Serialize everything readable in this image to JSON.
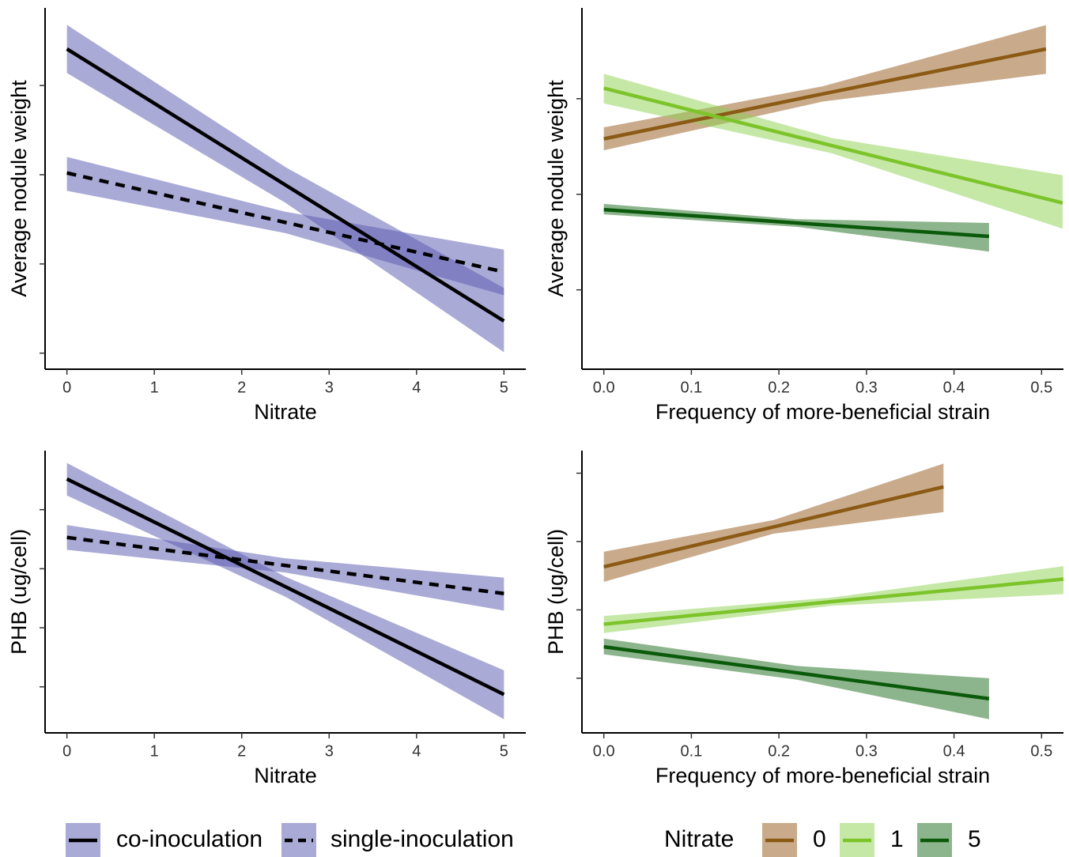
{
  "chart_data": [
    {
      "type": "line",
      "y_label": "Average nodule weight",
      "x_label": "Nitrate",
      "xlim": [
        -0.25,
        5.25
      ],
      "xticks": [
        0,
        1,
        2,
        3,
        4,
        5
      ],
      "ylim": [
        0.82,
        4.87
      ],
      "yticks": [
        1,
        2,
        3,
        4
      ],
      "series": [
        {
          "color": "#000000",
          "band_color": "#5555b0",
          "dash": false,
          "x": [
            0,
            2.5,
            5
          ],
          "values": [
            4.41,
            2.885,
            1.36
          ],
          "lower": [
            4.14,
            2.685,
            1.01
          ],
          "upper": [
            4.68,
            3.085,
            1.73
          ]
        },
        {
          "color": "#000000",
          "band_color": "#5555b0",
          "dash": true,
          "x": [
            0,
            2.5,
            5
          ],
          "values": [
            3.02,
            2.465,
            1.91
          ],
          "lower": [
            2.82,
            2.345,
            1.65
          ],
          "upper": [
            3.2,
            2.585,
            2.16
          ]
        }
      ]
    },
    {
      "type": "line",
      "y_label": "Average nodule weight",
      "x_label": "Frequency of more-beneficial strain",
      "xlim": [
        -0.025,
        0.525
      ],
      "xticks": [
        {
          "value": 0,
          "label": "0.0"
        },
        0.1,
        0.2,
        0.3,
        0.4,
        0.5
      ],
      "ylim": [
        0.17,
        3.95
      ],
      "yticks": [
        1,
        2,
        3
      ],
      "series": [
        {
          "color": "#8b5a14",
          "band_color": "#93581a",
          "dash": false,
          "x": [
            0,
            0.25,
            0.505
          ],
          "values": [
            2.58,
            3.05,
            3.52
          ],
          "lower": [
            2.46,
            2.97,
            3.26
          ],
          "upper": [
            2.7,
            3.13,
            3.77
          ]
        },
        {
          "color": "#7cc42a",
          "band_color": "#8ed14f",
          "dash": false,
          "x": [
            0,
            0.26,
            0.524
          ],
          "values": [
            3.11,
            2.51,
            1.91
          ],
          "lower": [
            2.95,
            2.43,
            1.64
          ],
          "upper": [
            3.26,
            2.59,
            2.2
          ]
        },
        {
          "color": "#0b5a0b",
          "band_color": "#1b6b1b",
          "dash": false,
          "x": [
            0,
            0.22,
            0.44
          ],
          "values": [
            1.84,
            1.7,
            1.56
          ],
          "lower": [
            1.79,
            1.66,
            1.4
          ],
          "upper": [
            1.9,
            1.74,
            1.7
          ]
        }
      ]
    },
    {
      "type": "line",
      "y_label": "PHB (ug/cell)",
      "x_label": "Nitrate",
      "xlim": [
        -0.25,
        5.25
      ],
      "xticks": [
        0,
        1,
        2,
        3,
        4,
        5
      ],
      "ylim": [
        0.22,
        5.0
      ],
      "yticks": [
        1,
        2,
        3,
        4
      ],
      "series": [
        {
          "name": "co-inoculation",
          "color": "#000000",
          "band_color": "#5555b0",
          "dash": false,
          "x": [
            0,
            2.5,
            5
          ],
          "values": [
            4.52,
            2.695,
            0.87
          ],
          "lower": [
            4.24,
            2.525,
            0.45
          ],
          "upper": [
            4.79,
            2.865,
            1.28
          ]
        },
        {
          "name": "single-inoculation",
          "color": "#000000",
          "band_color": "#5555b0",
          "dash": true,
          "x": [
            0,
            2.5,
            5
          ],
          "values": [
            3.53,
            3.055,
            2.58
          ],
          "lower": [
            3.32,
            2.935,
            2.29
          ],
          "upper": [
            3.74,
            3.175,
            2.85
          ]
        }
      ]
    },
    {
      "type": "line",
      "y_label": "PHB (ug/cell)",
      "x_label": "Frequency of more-beneficial strain",
      "xlim": [
        -0.025,
        0.525
      ],
      "xticks": [
        {
          "value": 0,
          "label": "0.0"
        },
        0.1,
        0.2,
        0.3,
        0.4,
        0.5
      ],
      "ylim": [
        0.2,
        4.33
      ],
      "yticks": [
        1,
        2,
        3,
        4
      ],
      "legend_title": "Nitrate",
      "series": [
        {
          "name": "0",
          "color": "#8b5a14",
          "band_color": "#93581a",
          "dash": false,
          "x": [
            0,
            0.194,
            0.388
          ],
          "values": [
            2.63,
            3.215,
            3.8
          ],
          "lower": [
            2.41,
            3.115,
            3.43
          ],
          "upper": [
            2.85,
            3.315,
            4.14
          ]
        },
        {
          "name": "1",
          "color": "#7cc42a",
          "band_color": "#8ed14f",
          "dash": false,
          "x": [
            0,
            0.26,
            0.525
          ],
          "values": [
            1.79,
            2.12,
            2.45
          ],
          "lower": [
            1.66,
            2.06,
            2.23
          ],
          "upper": [
            1.91,
            2.18,
            2.64
          ]
        },
        {
          "name": "5",
          "color": "#0b5a0b",
          "band_color": "#1b6b1b",
          "dash": false,
          "x": [
            0,
            0.22,
            0.44
          ],
          "values": [
            1.46,
            1.08,
            0.7
          ],
          "lower": [
            1.35,
            0.98,
            0.4
          ],
          "upper": [
            1.58,
            1.18,
            1.0
          ]
        }
      ]
    }
  ]
}
